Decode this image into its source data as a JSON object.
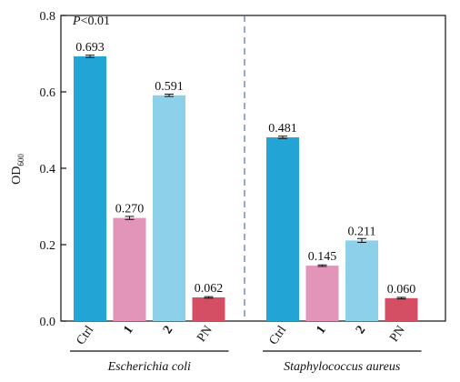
{
  "chart_data": {
    "type": "bar",
    "ylabel_main": "OD",
    "ylabel_sub": "600",
    "ylim": [
      0,
      0.8
    ],
    "yticks": [
      "0.0",
      "0.2",
      "0.4",
      "0.6",
      "0.8"
    ],
    "annotation_p": "P",
    "annotation_rest": "<0.01",
    "groups": [
      {
        "name": "Escherichia coli",
        "bars": [
          {
            "label": "Ctrl",
            "value": 0.693,
            "value_label": "0.693",
            "error": 0.003,
            "color": "#22a5d5"
          },
          {
            "label": "1",
            "value": 0.27,
            "value_label": "0.270",
            "error": 0.004,
            "color": "#e295b9"
          },
          {
            "label": "2",
            "value": 0.591,
            "value_label": "0.591",
            "error": 0.003,
            "color": "#8dd0ea"
          },
          {
            "label": "PN",
            "value": 0.062,
            "value_label": "0.062",
            "error": 0.002,
            "color": "#d44f63"
          }
        ]
      },
      {
        "name": "Staphylococcus aureus",
        "bars": [
          {
            "label": "Ctrl",
            "value": 0.481,
            "value_label": "0.481",
            "error": 0.003,
            "color": "#22a5d5"
          },
          {
            "label": "1",
            "value": 0.145,
            "value_label": "0.145",
            "error": 0.002,
            "color": "#e295b9"
          },
          {
            "label": "2",
            "value": 0.211,
            "value_label": "0.211",
            "error": 0.005,
            "color": "#8dd0ea"
          },
          {
            "label": "PN",
            "value": 0.06,
            "value_label": "0.060",
            "error": 0.002,
            "color": "#d44f63"
          }
        ]
      }
    ],
    "divider_color": "#4a6fb5"
  }
}
